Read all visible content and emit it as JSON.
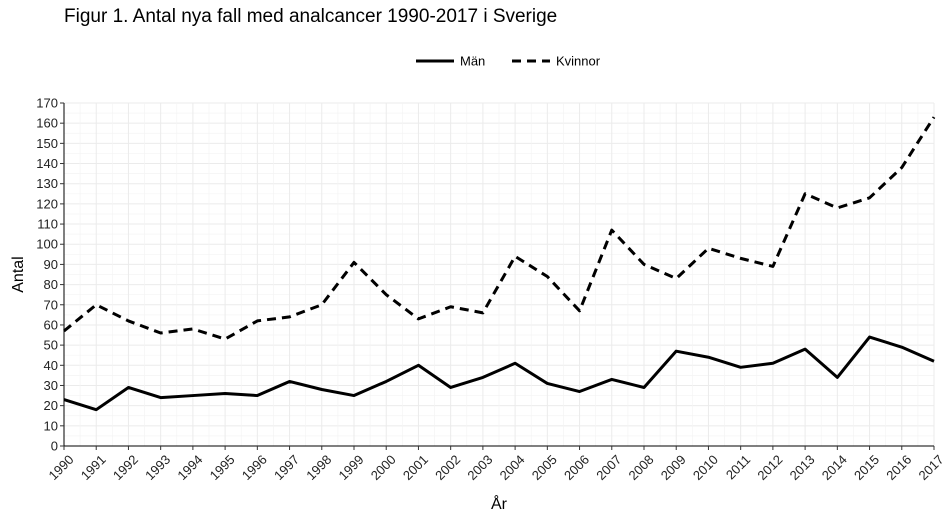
{
  "title": "Figur 1. Antal nya fall med analcancer 1990-2017 i Sverige",
  "chart_data": {
    "type": "line",
    "x": [
      1990,
      1991,
      1992,
      1993,
      1994,
      1995,
      1996,
      1997,
      1998,
      1999,
      2000,
      2001,
      2002,
      2003,
      2004,
      2005,
      2006,
      2007,
      2008,
      2009,
      2010,
      2011,
      2012,
      2013,
      2014,
      2015,
      2016,
      2017
    ],
    "series": [
      {
        "name": "Män",
        "style": "solid",
        "values": [
          23,
          18,
          29,
          24,
          25,
          26,
          25,
          32,
          28,
          25,
          32,
          40,
          29,
          34,
          41,
          31,
          27,
          33,
          29,
          47,
          44,
          39,
          41,
          48,
          34,
          54,
          49,
          42
        ]
      },
      {
        "name": "Kvinnor",
        "style": "dashed",
        "values": [
          57,
          70,
          62,
          56,
          58,
          53,
          62,
          64,
          70,
          91,
          75,
          63,
          69,
          66,
          94,
          84,
          67,
          107,
          90,
          83,
          98,
          93,
          89,
          125,
          118,
          123,
          138,
          163
        ]
      }
    ],
    "xlabel": "År",
    "ylabel": "Antal",
    "ylim": [
      0,
      170
    ],
    "yticks": [
      0,
      10,
      20,
      30,
      40,
      50,
      60,
      70,
      80,
      90,
      100,
      110,
      120,
      130,
      140,
      150,
      160,
      170
    ],
    "grid": true,
    "legend_position": "top-center",
    "line_color": "#000000",
    "grid_color": "#ebebeb"
  }
}
